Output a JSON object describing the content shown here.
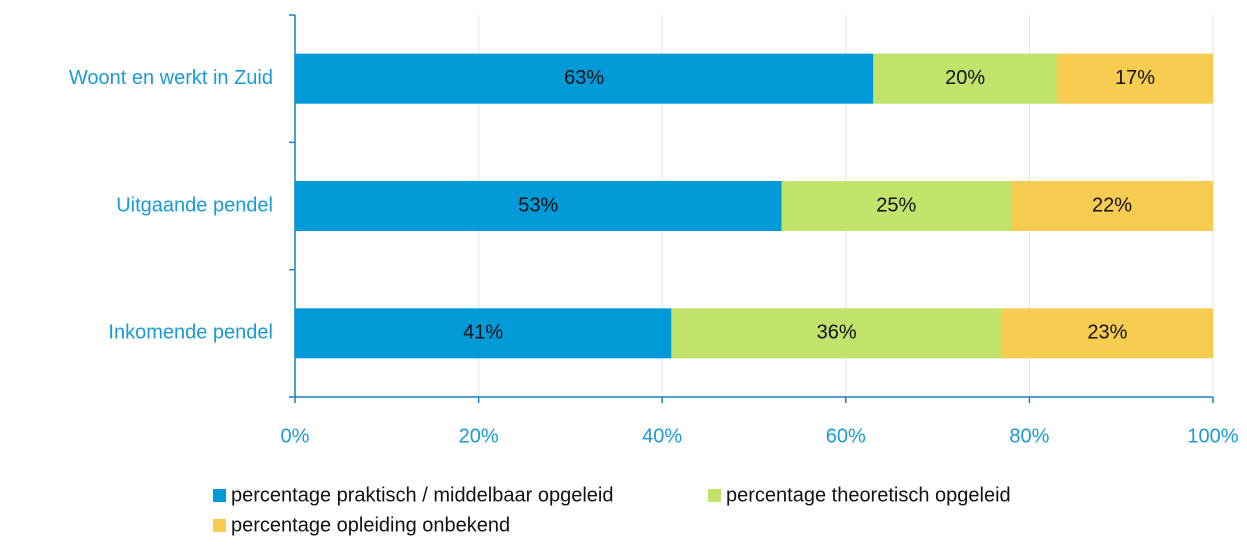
{
  "chart_data": {
    "type": "stacked-barh",
    "categories": [
      "Woont en werkt in Zuid",
      "Uitgaande pendel",
      "Inkomende pendel"
    ],
    "series": [
      {
        "name": "percentage praktisch / middelbaar opgeleid",
        "color": "#009ad9",
        "values": [
          63,
          53,
          41
        ],
        "value_labels": [
          "63%",
          "53%",
          "41%"
        ]
      },
      {
        "name": "percentage theoretisch opgeleid",
        "color": "#c1e26b",
        "values": [
          20,
          25,
          36
        ],
        "value_labels": [
          "20%",
          "25%",
          "36%"
        ]
      },
      {
        "name": "percentage opleiding onbekend",
        "color": "#f8cc50",
        "values": [
          17,
          22,
          23
        ],
        "value_labels": [
          "17%",
          "22%",
          "23%"
        ]
      }
    ],
    "xlim": [
      0,
      100
    ],
    "xticks": [
      {
        "value": 0,
        "label": "0%"
      },
      {
        "value": 20,
        "label": "20%"
      },
      {
        "value": 40,
        "label": "40%"
      },
      {
        "value": 60,
        "label": "60%"
      },
      {
        "value": 80,
        "label": "80%"
      },
      {
        "value": 100,
        "label": "100%"
      }
    ],
    "grid": true
  }
}
